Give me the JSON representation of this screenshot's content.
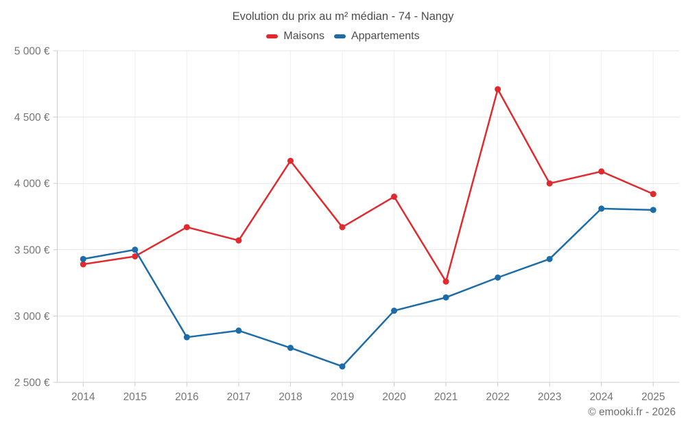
{
  "title": "Evolution du prix au m² médian - 74 - Nangy",
  "attribution": "© emooki.fr - 2026",
  "colors": {
    "maisons": "#e02a2e",
    "appartements": "#1b6ca8",
    "grid_h": "#e6e6e6",
    "grid_v": "#efefef",
    "axis": "#cccccc",
    "tick_label": "#757575",
    "title_text": "#4c4c4c"
  },
  "chart_data": {
    "type": "line",
    "title": "Evolution du prix au m² médian - 74 - Nangy",
    "categories": [
      "2014",
      "2015",
      "2016",
      "2017",
      "2018",
      "2019",
      "2020",
      "2021",
      "2022",
      "2023",
      "2024",
      "2025"
    ],
    "series": [
      {
        "name": "Maisons",
        "color": "#e02a2e",
        "values": [
          3390,
          3450,
          3670,
          3570,
          4170,
          3670,
          3900,
          3260,
          4710,
          4000,
          4090,
          3920
        ]
      },
      {
        "name": "Appartements",
        "color": "#1b6ca8",
        "values": [
          3430,
          3500,
          2840,
          2890,
          2760,
          2620,
          3040,
          3140,
          3290,
          3430,
          3810,
          3800
        ]
      }
    ],
    "xlabel": "",
    "ylabel": "",
    "ylim": [
      2500,
      5000
    ],
    "ytick_step": 500,
    "ytick_labels": [
      "2 500 €",
      "3 000 €",
      "3 500 €",
      "4 000 €",
      "4 500 €",
      "5 000 €"
    ],
    "legend_position": "top",
    "grid": true,
    "unit": "€"
  }
}
